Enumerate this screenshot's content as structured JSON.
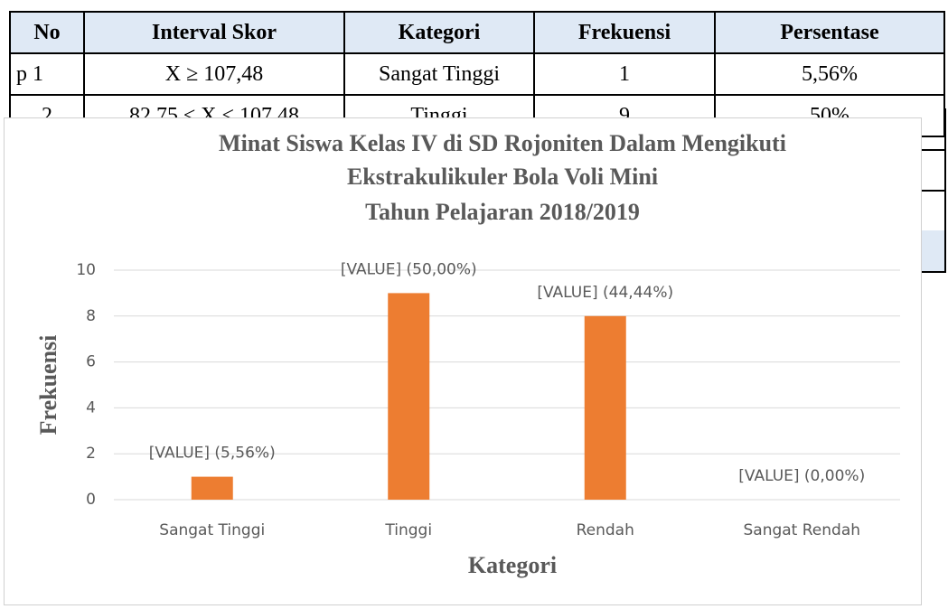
{
  "table": {
    "header": [
      "No",
      "Interval Skor",
      "Kategori",
      "Frekuensi",
      "Persentase"
    ],
    "rows": [
      [
        "p 1",
        "X ≥ 107,48",
        "Sangat Tinggi",
        "1",
        "5,56%"
      ],
      [
        "2",
        "82,75 ≤ X < 107,48",
        "Tinggi",
        "9",
        "50%"
      ]
    ]
  },
  "chart_data": {
    "type": "bar",
    "title": [
      "Minat Siswa Kelas IV di SD Rojoniten Dalam Mengikuti",
      "Ekstrakulikuler Bola Voli Mini",
      "Tahun Pelajaran 2018/2019"
    ],
    "x_label": "Kategori",
    "y_label": "Frekuensi",
    "categories": [
      "Sangat Tinggi",
      "Tinggi",
      "Rendah",
      "Sangat Rendah"
    ],
    "values": [
      1,
      9,
      8,
      0
    ],
    "value_labels": [
      "[VALUE] (5,56%)",
      "[VALUE] (50,00%)",
      "[VALUE] (44,44%)",
      "[VALUE] (0,00%)"
    ],
    "color": "#ed7d31",
    "ylim": [
      0,
      10
    ],
    "yticks": [
      0,
      2,
      4,
      6,
      8,
      10
    ],
    "grid": true
  }
}
